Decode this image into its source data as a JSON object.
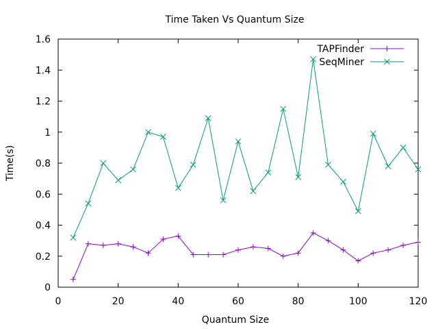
{
  "chart_data": {
    "type": "line",
    "title": "Time Taken Vs Quantum Size",
    "xlabel": "Quantum Size",
    "ylabel": "Time(s)",
    "xlim": [
      0,
      120
    ],
    "ylim": [
      0,
      1.6
    ],
    "xticks": [
      "0",
      "20",
      "40",
      "60",
      "80",
      "100",
      "120"
    ],
    "yticks": [
      "0",
      "0.2",
      "0.4",
      "0.6",
      "0.8",
      "1",
      "1.2",
      "1.4",
      "1.6"
    ],
    "grid": false,
    "legend_position": "top-right",
    "x": [
      5,
      10,
      15,
      20,
      25,
      30,
      35,
      40,
      45,
      50,
      55,
      60,
      65,
      70,
      75,
      80,
      85,
      90,
      95,
      100,
      105,
      110,
      115,
      120
    ],
    "series": [
      {
        "name": "TAPFinder",
        "color": "#9400d3",
        "marker": "plus",
        "values": [
          0.05,
          0.28,
          0.27,
          0.28,
          0.26,
          0.22,
          0.31,
          0.33,
          0.21,
          0.21,
          0.21,
          0.24,
          0.26,
          0.25,
          0.2,
          0.22,
          0.35,
          0.3,
          0.24,
          0.17,
          0.22,
          0.24,
          0.27,
          0.29
        ]
      },
      {
        "name": "SeqMiner",
        "color": "#009e73",
        "marker": "cross",
        "values": [
          0.32,
          0.54,
          0.8,
          0.69,
          0.76,
          1.0,
          0.97,
          0.64,
          0.79,
          1.09,
          0.56,
          0.94,
          0.62,
          0.74,
          1.15,
          0.71,
          1.47,
          0.79,
          0.68,
          0.49,
          0.99,
          0.78,
          0.9,
          0.76
        ]
      }
    ]
  }
}
